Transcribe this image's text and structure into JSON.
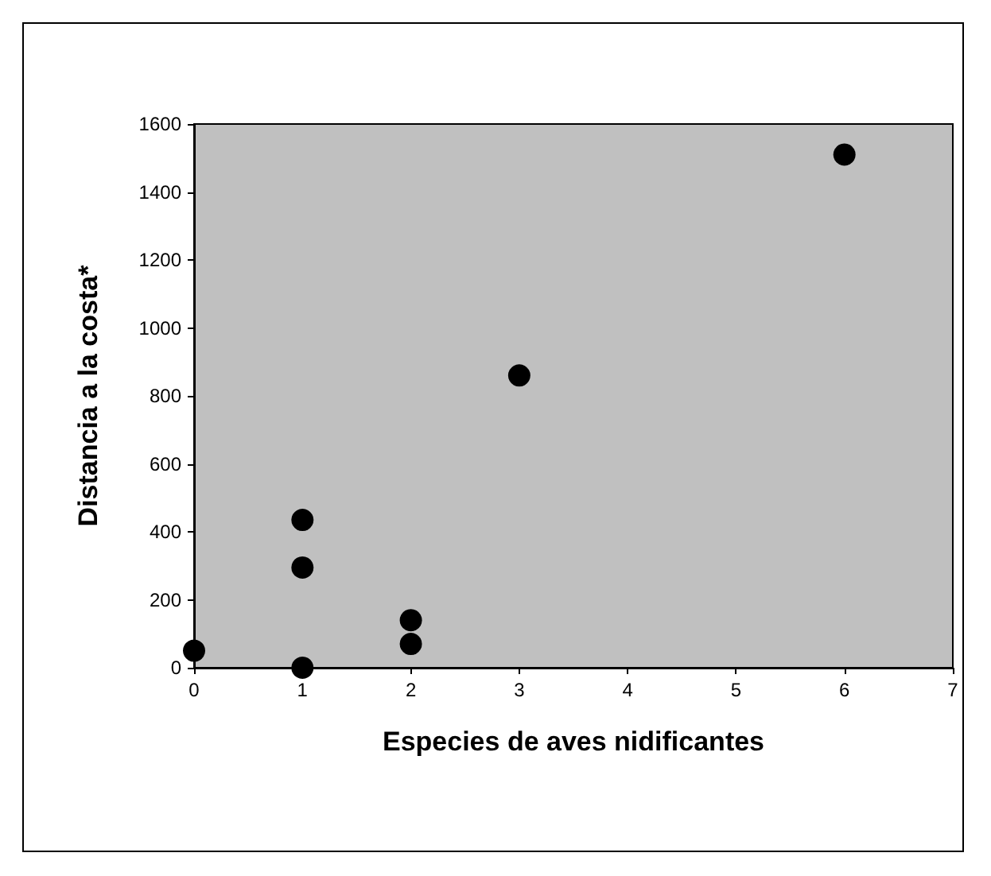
{
  "chart_data": {
    "type": "scatter",
    "xlabel": "Especies de aves nidificantes",
    "ylabel": "Distancia a la costa*",
    "x": [
      0,
      1,
      1,
      1,
      2,
      2,
      3,
      6
    ],
    "series": [
      {
        "color": "#000000",
        "values": [
          50,
          435,
          295,
          0,
          140,
          70,
          860,
          1510
        ]
      }
    ],
    "xlim": [
      0,
      7
    ],
    "xticks": [
      0,
      1,
      2,
      3,
      4,
      5,
      6,
      7
    ],
    "ylim": [
      0,
      1600
    ],
    "yticks": [
      0,
      200,
      400,
      600,
      800,
      1000,
      1200,
      1400,
      1600
    ],
    "grid": false,
    "marker": "circle"
  }
}
